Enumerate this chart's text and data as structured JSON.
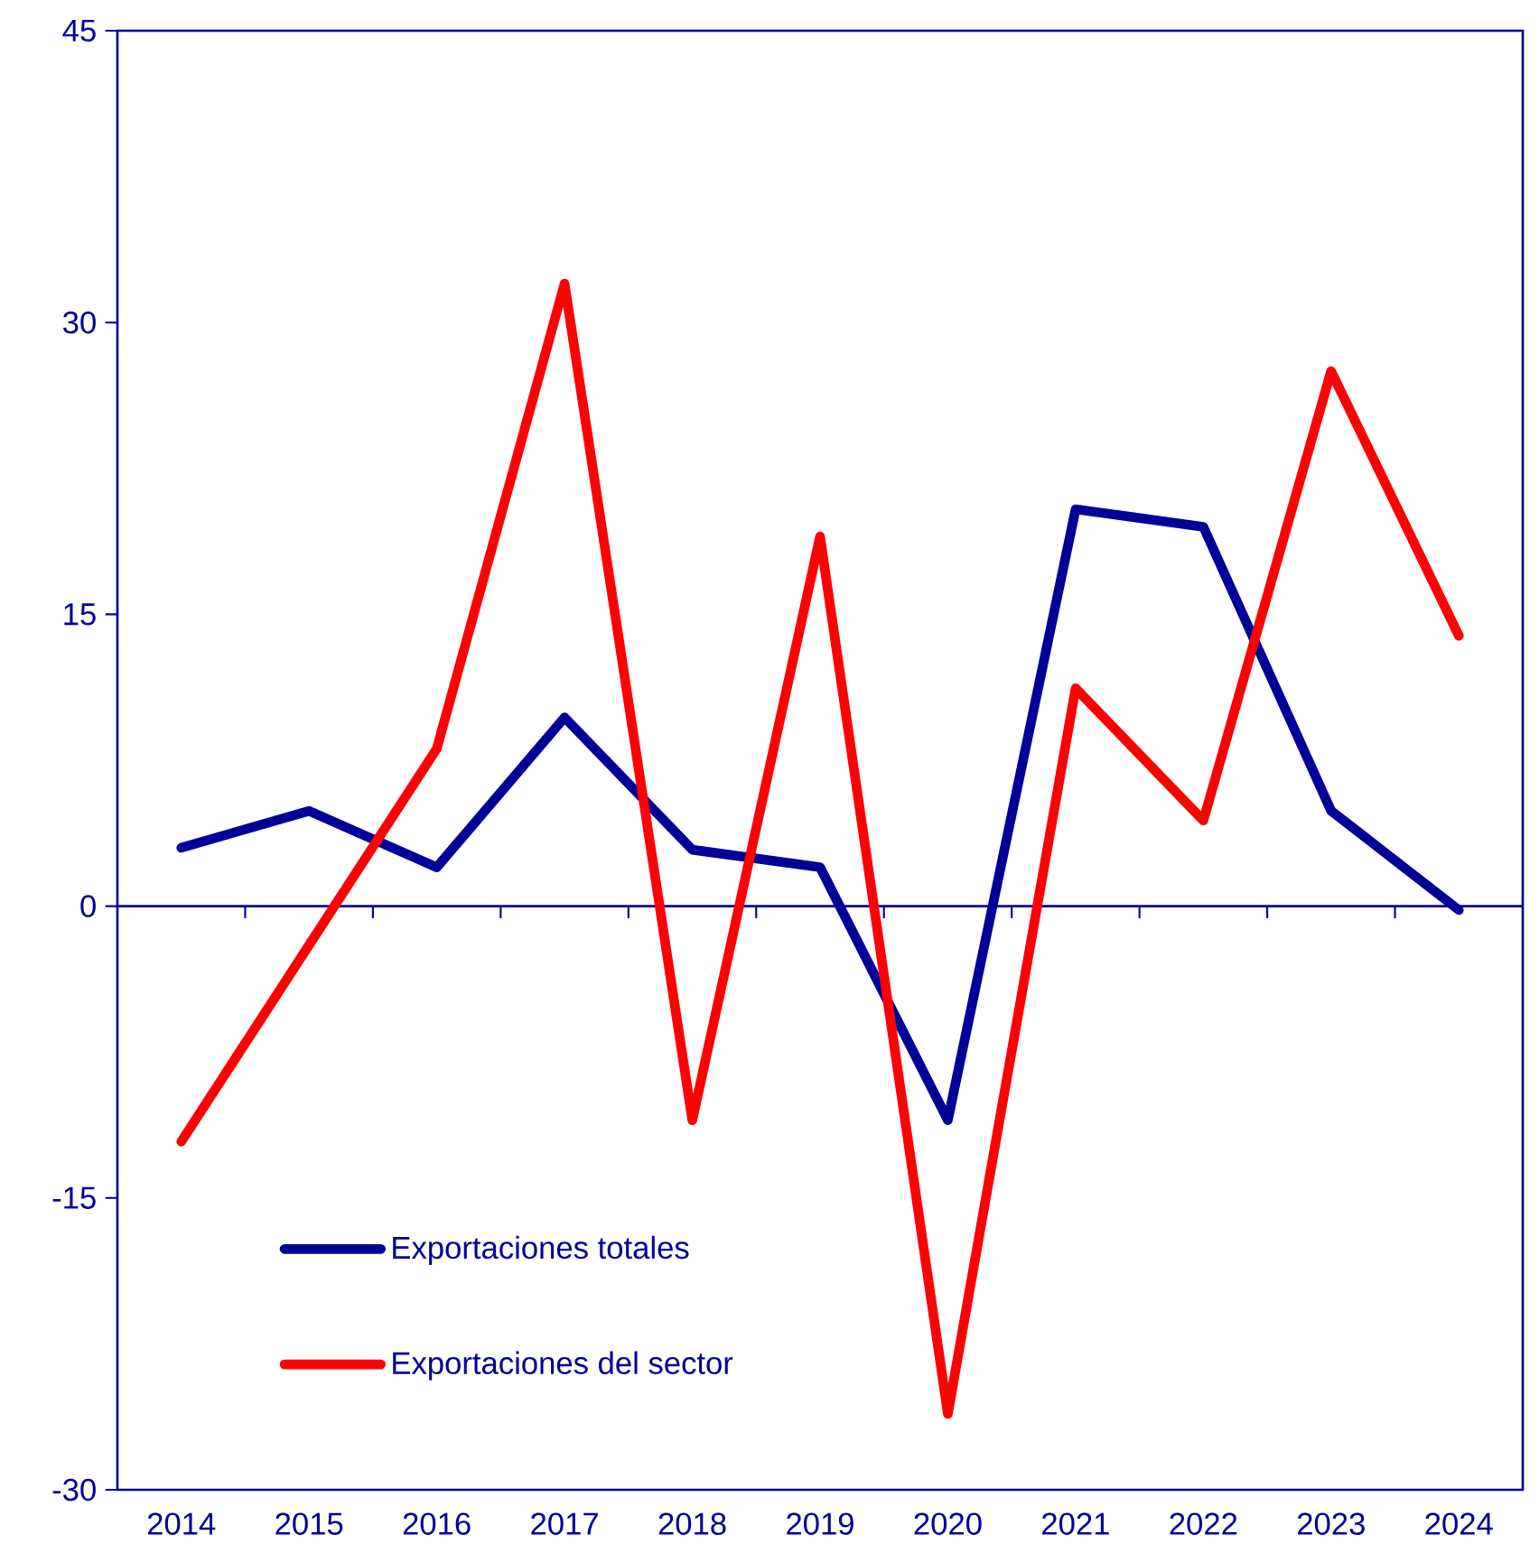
{
  "chart_data": {
    "type": "line",
    "categories": [
      "2014",
      "2015",
      "2016",
      "2017",
      "2018",
      "2019",
      "2020",
      "2021",
      "2022",
      "2023",
      "2024"
    ],
    "series": [
      {
        "name": "Exportaciones totales",
        "color": "#000099",
        "values": [
          3.0,
          4.9,
          2.0,
          9.7,
          2.9,
          2.0,
          -11.0,
          20.4,
          19.5,
          4.9,
          -0.2
        ]
      },
      {
        "name": "Exportaciones del sector",
        "color": "#ff0000",
        "values": [
          -12.1,
          -2.0,
          8.1,
          32.0,
          -11.0,
          19.0,
          -26.1,
          11.2,
          4.4,
          27.5,
          13.9
        ]
      }
    ],
    "ref_lines": [
      {
        "axis": "y",
        "value": 0,
        "color": "#000099"
      }
    ],
    "ylim": [
      -30,
      45
    ],
    "yticks": [
      -30,
      -15,
      0,
      15,
      30,
      45
    ],
    "grid": false,
    "legend": "bottom left",
    "marker": "none",
    "line_style": "solid"
  }
}
